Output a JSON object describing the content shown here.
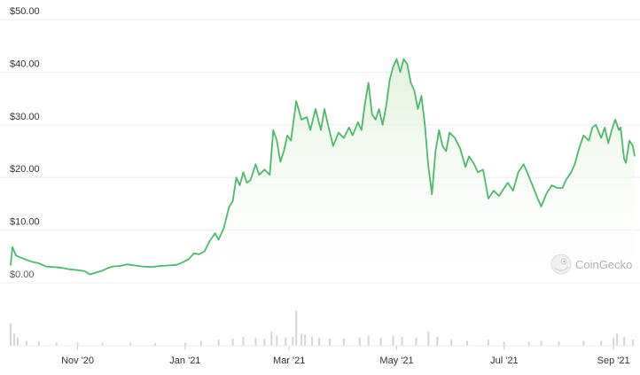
{
  "chart_data": {
    "type": "area",
    "y_axis": {
      "ticks": [
        0,
        10,
        20,
        30,
        40,
        50
      ],
      "tick_labels": [
        "$0.00",
        "$10.00",
        "$20.00",
        "$30.00",
        "$40.00",
        "$50.00"
      ],
      "ylim": [
        0,
        50
      ]
    },
    "x_axis": {
      "xlim": [
        "2020-09-24",
        "2021-09-13"
      ],
      "ticks": [
        "2020-11-01",
        "2021-01-01",
        "2021-03-01",
        "2021-05-01",
        "2021-07-01",
        "2021-09-01"
      ],
      "tick_labels": [
        "Nov '20",
        "Jan '21",
        "Mar '21",
        "May '21",
        "Jul '21",
        "Sep '21"
      ]
    },
    "grid": true,
    "colors": {
      "line": "#4cb96b",
      "area_top": "#dff0d8",
      "volume": "#d5d5d5",
      "grid": "#eeeeee"
    },
    "series": [
      {
        "values": [
          [
            "2020-09-24",
            3.3
          ],
          [
            "2020-09-25",
            6.8
          ],
          [
            "2020-09-27",
            5.2
          ],
          [
            "2020-09-29",
            4.9
          ],
          [
            "2020-10-02",
            4.5
          ],
          [
            "2020-10-06",
            4.0
          ],
          [
            "2020-10-10",
            3.7
          ],
          [
            "2020-10-14",
            3.1
          ],
          [
            "2020-10-18",
            3.0
          ],
          [
            "2020-10-22",
            2.9
          ],
          [
            "2020-10-27",
            2.6
          ],
          [
            "2020-11-01",
            2.4
          ],
          [
            "2020-11-05",
            2.2
          ],
          [
            "2020-11-08",
            1.6
          ],
          [
            "2020-11-12",
            2.0
          ],
          [
            "2020-11-15",
            2.3
          ],
          [
            "2020-11-18",
            2.8
          ],
          [
            "2020-11-21",
            3.1
          ],
          [
            "2020-11-25",
            3.2
          ],
          [
            "2020-11-29",
            3.5
          ],
          [
            "2020-12-03",
            3.3
          ],
          [
            "2020-12-08",
            3.1
          ],
          [
            "2020-12-13",
            3.0
          ],
          [
            "2020-12-18",
            3.2
          ],
          [
            "2020-12-23",
            3.3
          ],
          [
            "2020-12-27",
            3.4
          ],
          [
            "2020-12-30",
            3.8
          ],
          [
            "2021-01-03",
            4.5
          ],
          [
            "2021-01-06",
            5.6
          ],
          [
            "2021-01-09",
            5.4
          ],
          [
            "2021-01-12",
            6.0
          ],
          [
            "2021-01-15",
            8.0
          ],
          [
            "2021-01-18",
            9.4
          ],
          [
            "2021-01-20",
            8.2
          ],
          [
            "2021-01-23",
            10.5
          ],
          [
            "2021-01-26",
            14.5
          ],
          [
            "2021-01-28",
            15.5
          ],
          [
            "2021-01-30",
            20.0
          ],
          [
            "2021-02-01",
            18.5
          ],
          [
            "2021-02-03",
            21.0
          ],
          [
            "2021-02-05",
            19.0
          ],
          [
            "2021-02-07",
            19.5
          ],
          [
            "2021-02-10",
            22.5
          ],
          [
            "2021-02-12",
            20.5
          ],
          [
            "2021-02-15",
            21.5
          ],
          [
            "2021-02-18",
            20.5
          ],
          [
            "2021-02-20",
            29.0
          ],
          [
            "2021-02-22",
            27.0
          ],
          [
            "2021-02-24",
            23.0
          ],
          [
            "2021-02-26",
            25.0
          ],
          [
            "2021-02-28",
            28.0
          ],
          [
            "2021-03-02",
            27.0
          ],
          [
            "2021-03-05",
            34.5
          ],
          [
            "2021-03-08",
            31.0
          ],
          [
            "2021-03-11",
            31.5
          ],
          [
            "2021-03-13",
            29.0
          ],
          [
            "2021-03-16",
            33.0
          ],
          [
            "2021-03-19",
            29.0
          ],
          [
            "2021-03-21",
            33.0
          ],
          [
            "2021-03-23",
            30.0
          ],
          [
            "2021-03-26",
            26.0
          ],
          [
            "2021-03-29",
            28.5
          ],
          [
            "2021-04-01",
            27.5
          ],
          [
            "2021-04-04",
            29.5
          ],
          [
            "2021-04-06",
            28.0
          ],
          [
            "2021-04-09",
            30.5
          ],
          [
            "2021-04-11",
            29.0
          ],
          [
            "2021-04-13",
            34.0
          ],
          [
            "2021-04-15",
            38.0
          ],
          [
            "2021-04-17",
            32.0
          ],
          [
            "2021-04-19",
            31.0
          ],
          [
            "2021-04-21",
            33.0
          ],
          [
            "2021-04-23",
            30.0
          ],
          [
            "2021-04-25",
            33.5
          ],
          [
            "2021-04-27",
            38.5
          ],
          [
            "2021-04-29",
            41.0
          ],
          [
            "2021-05-01",
            42.5
          ],
          [
            "2021-05-03",
            40.0
          ],
          [
            "2021-05-05",
            42.5
          ],
          [
            "2021-05-07",
            41.5
          ],
          [
            "2021-05-09",
            38.0
          ],
          [
            "2021-05-11",
            36.5
          ],
          [
            "2021-05-13",
            33.0
          ],
          [
            "2021-05-15",
            35.5
          ],
          [
            "2021-05-17",
            30.0
          ],
          [
            "2021-05-19",
            22.0
          ],
          [
            "2021-05-20",
            19.5
          ],
          [
            "2021-05-21",
            16.8
          ],
          [
            "2021-05-23",
            25.0
          ],
          [
            "2021-05-25",
            29.0
          ],
          [
            "2021-05-27",
            26.0
          ],
          [
            "2021-05-29",
            25.0
          ],
          [
            "2021-05-31",
            28.5
          ],
          [
            "2021-06-03",
            27.5
          ],
          [
            "2021-06-06",
            25.5
          ],
          [
            "2021-06-09",
            22.0
          ],
          [
            "2021-06-11",
            24.0
          ],
          [
            "2021-06-14",
            22.5
          ],
          [
            "2021-06-16",
            21.0
          ],
          [
            "2021-06-19",
            21.5
          ],
          [
            "2021-06-22",
            16.0
          ],
          [
            "2021-06-25",
            17.5
          ],
          [
            "2021-06-28",
            16.5
          ],
          [
            "2021-06-30",
            17.5
          ],
          [
            "2021-07-03",
            19.0
          ],
          [
            "2021-07-06",
            17.5
          ],
          [
            "2021-07-09",
            21.0
          ],
          [
            "2021-07-12",
            22.5
          ],
          [
            "2021-07-14",
            21.0
          ],
          [
            "2021-07-17",
            18.5
          ],
          [
            "2021-07-20",
            16.0
          ],
          [
            "2021-07-22",
            14.5
          ],
          [
            "2021-07-25",
            17.0
          ],
          [
            "2021-07-28",
            18.5
          ],
          [
            "2021-07-31",
            18.0
          ],
          [
            "2021-08-03",
            18.0
          ],
          [
            "2021-08-05",
            19.5
          ],
          [
            "2021-08-08",
            21.0
          ],
          [
            "2021-08-10",
            22.5
          ],
          [
            "2021-08-12",
            25.0
          ],
          [
            "2021-08-15",
            28.0
          ],
          [
            "2021-08-18",
            27.0
          ],
          [
            "2021-08-20",
            29.5
          ],
          [
            "2021-08-22",
            30.0
          ],
          [
            "2021-08-25",
            27.5
          ],
          [
            "2021-08-27",
            29.5
          ],
          [
            "2021-08-29",
            26.5
          ],
          [
            "2021-08-31",
            29.0
          ],
          [
            "2021-09-02",
            31.0
          ],
          [
            "2021-09-04",
            29.0
          ],
          [
            "2021-09-05",
            29.5
          ],
          [
            "2021-09-07",
            23.5
          ],
          [
            "2021-09-08",
            22.8
          ],
          [
            "2021-09-10",
            27.0
          ],
          [
            "2021-09-12",
            26.0
          ],
          [
            "2021-09-13",
            24.0
          ]
        ]
      }
    ],
    "volume": [
      [
        "2020-09-24",
        0.55
      ],
      [
        "2020-09-26",
        0.3
      ],
      [
        "2020-09-28",
        0.2
      ],
      [
        "2020-10-03",
        0.12
      ],
      [
        "2020-10-10",
        0.1
      ],
      [
        "2020-10-20",
        0.08
      ],
      [
        "2020-11-01",
        0.08
      ],
      [
        "2020-11-15",
        0.07
      ],
      [
        "2020-12-01",
        0.07
      ],
      [
        "2020-12-15",
        0.06
      ],
      [
        "2021-01-01",
        0.08
      ],
      [
        "2021-01-10",
        0.12
      ],
      [
        "2021-01-20",
        0.15
      ],
      [
        "2021-01-28",
        0.18
      ],
      [
        "2021-02-03",
        0.22
      ],
      [
        "2021-02-10",
        0.2
      ],
      [
        "2021-02-15",
        0.18
      ],
      [
        "2021-02-19",
        0.35
      ],
      [
        "2021-02-22",
        0.25
      ],
      [
        "2021-02-27",
        0.2
      ],
      [
        "2021-03-03",
        0.22
      ],
      [
        "2021-03-05",
        0.88
      ],
      [
        "2021-03-08",
        0.3
      ],
      [
        "2021-03-10",
        0.28
      ],
      [
        "2021-03-14",
        0.22
      ],
      [
        "2021-03-18",
        0.2
      ],
      [
        "2021-03-24",
        0.18
      ],
      [
        "2021-04-01",
        0.18
      ],
      [
        "2021-04-10",
        0.2
      ],
      [
        "2021-04-15",
        0.25
      ],
      [
        "2021-04-22",
        0.2
      ],
      [
        "2021-04-29",
        0.25
      ],
      [
        "2021-05-04",
        0.22
      ],
      [
        "2021-05-12",
        0.2
      ],
      [
        "2021-05-19",
        0.35
      ],
      [
        "2021-05-24",
        0.22
      ],
      [
        "2021-06-01",
        0.15
      ],
      [
        "2021-06-10",
        0.12
      ],
      [
        "2021-06-22",
        0.15
      ],
      [
        "2021-07-01",
        0.1
      ],
      [
        "2021-07-15",
        0.1
      ],
      [
        "2021-07-22",
        0.12
      ],
      [
        "2021-08-01",
        0.1
      ],
      [
        "2021-08-15",
        0.12
      ],
      [
        "2021-08-25",
        0.12
      ],
      [
        "2021-09-01",
        0.2
      ],
      [
        "2021-09-03",
        0.3
      ],
      [
        "2021-09-07",
        0.22
      ],
      [
        "2021-09-12",
        0.15
      ]
    ]
  },
  "watermark": {
    "text": "CoinGecko",
    "icon": "gecko-logo-icon"
  }
}
